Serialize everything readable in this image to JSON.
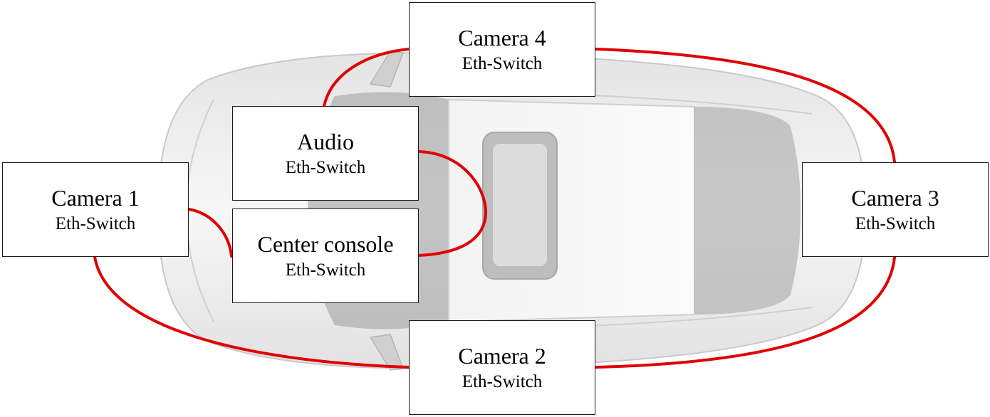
{
  "diagram": {
    "link_color": "#e00000",
    "nodes": {
      "camera4": {
        "title": "Camera 4",
        "sub": "Eth-Switch"
      },
      "audio": {
        "title": "Audio",
        "sub": "Eth-Switch"
      },
      "camera1": {
        "title": "Camera 1",
        "sub": "Eth-Switch"
      },
      "center_console": {
        "title": "Center console",
        "sub": "Eth-Switch"
      },
      "camera3": {
        "title": "Camera 3",
        "sub": "Eth-Switch"
      },
      "camera2": {
        "title": "Camera 2",
        "sub": "Eth-Switch"
      }
    },
    "links": [
      {
        "from": "camera1",
        "to": "center_console"
      },
      {
        "from": "center_console",
        "to": "audio"
      },
      {
        "from": "audio",
        "to": "camera4"
      },
      {
        "from": "camera4",
        "to": "camera3"
      },
      {
        "from": "camera3",
        "to": "camera2"
      },
      {
        "from": "camera2",
        "to": "camera1"
      }
    ]
  }
}
